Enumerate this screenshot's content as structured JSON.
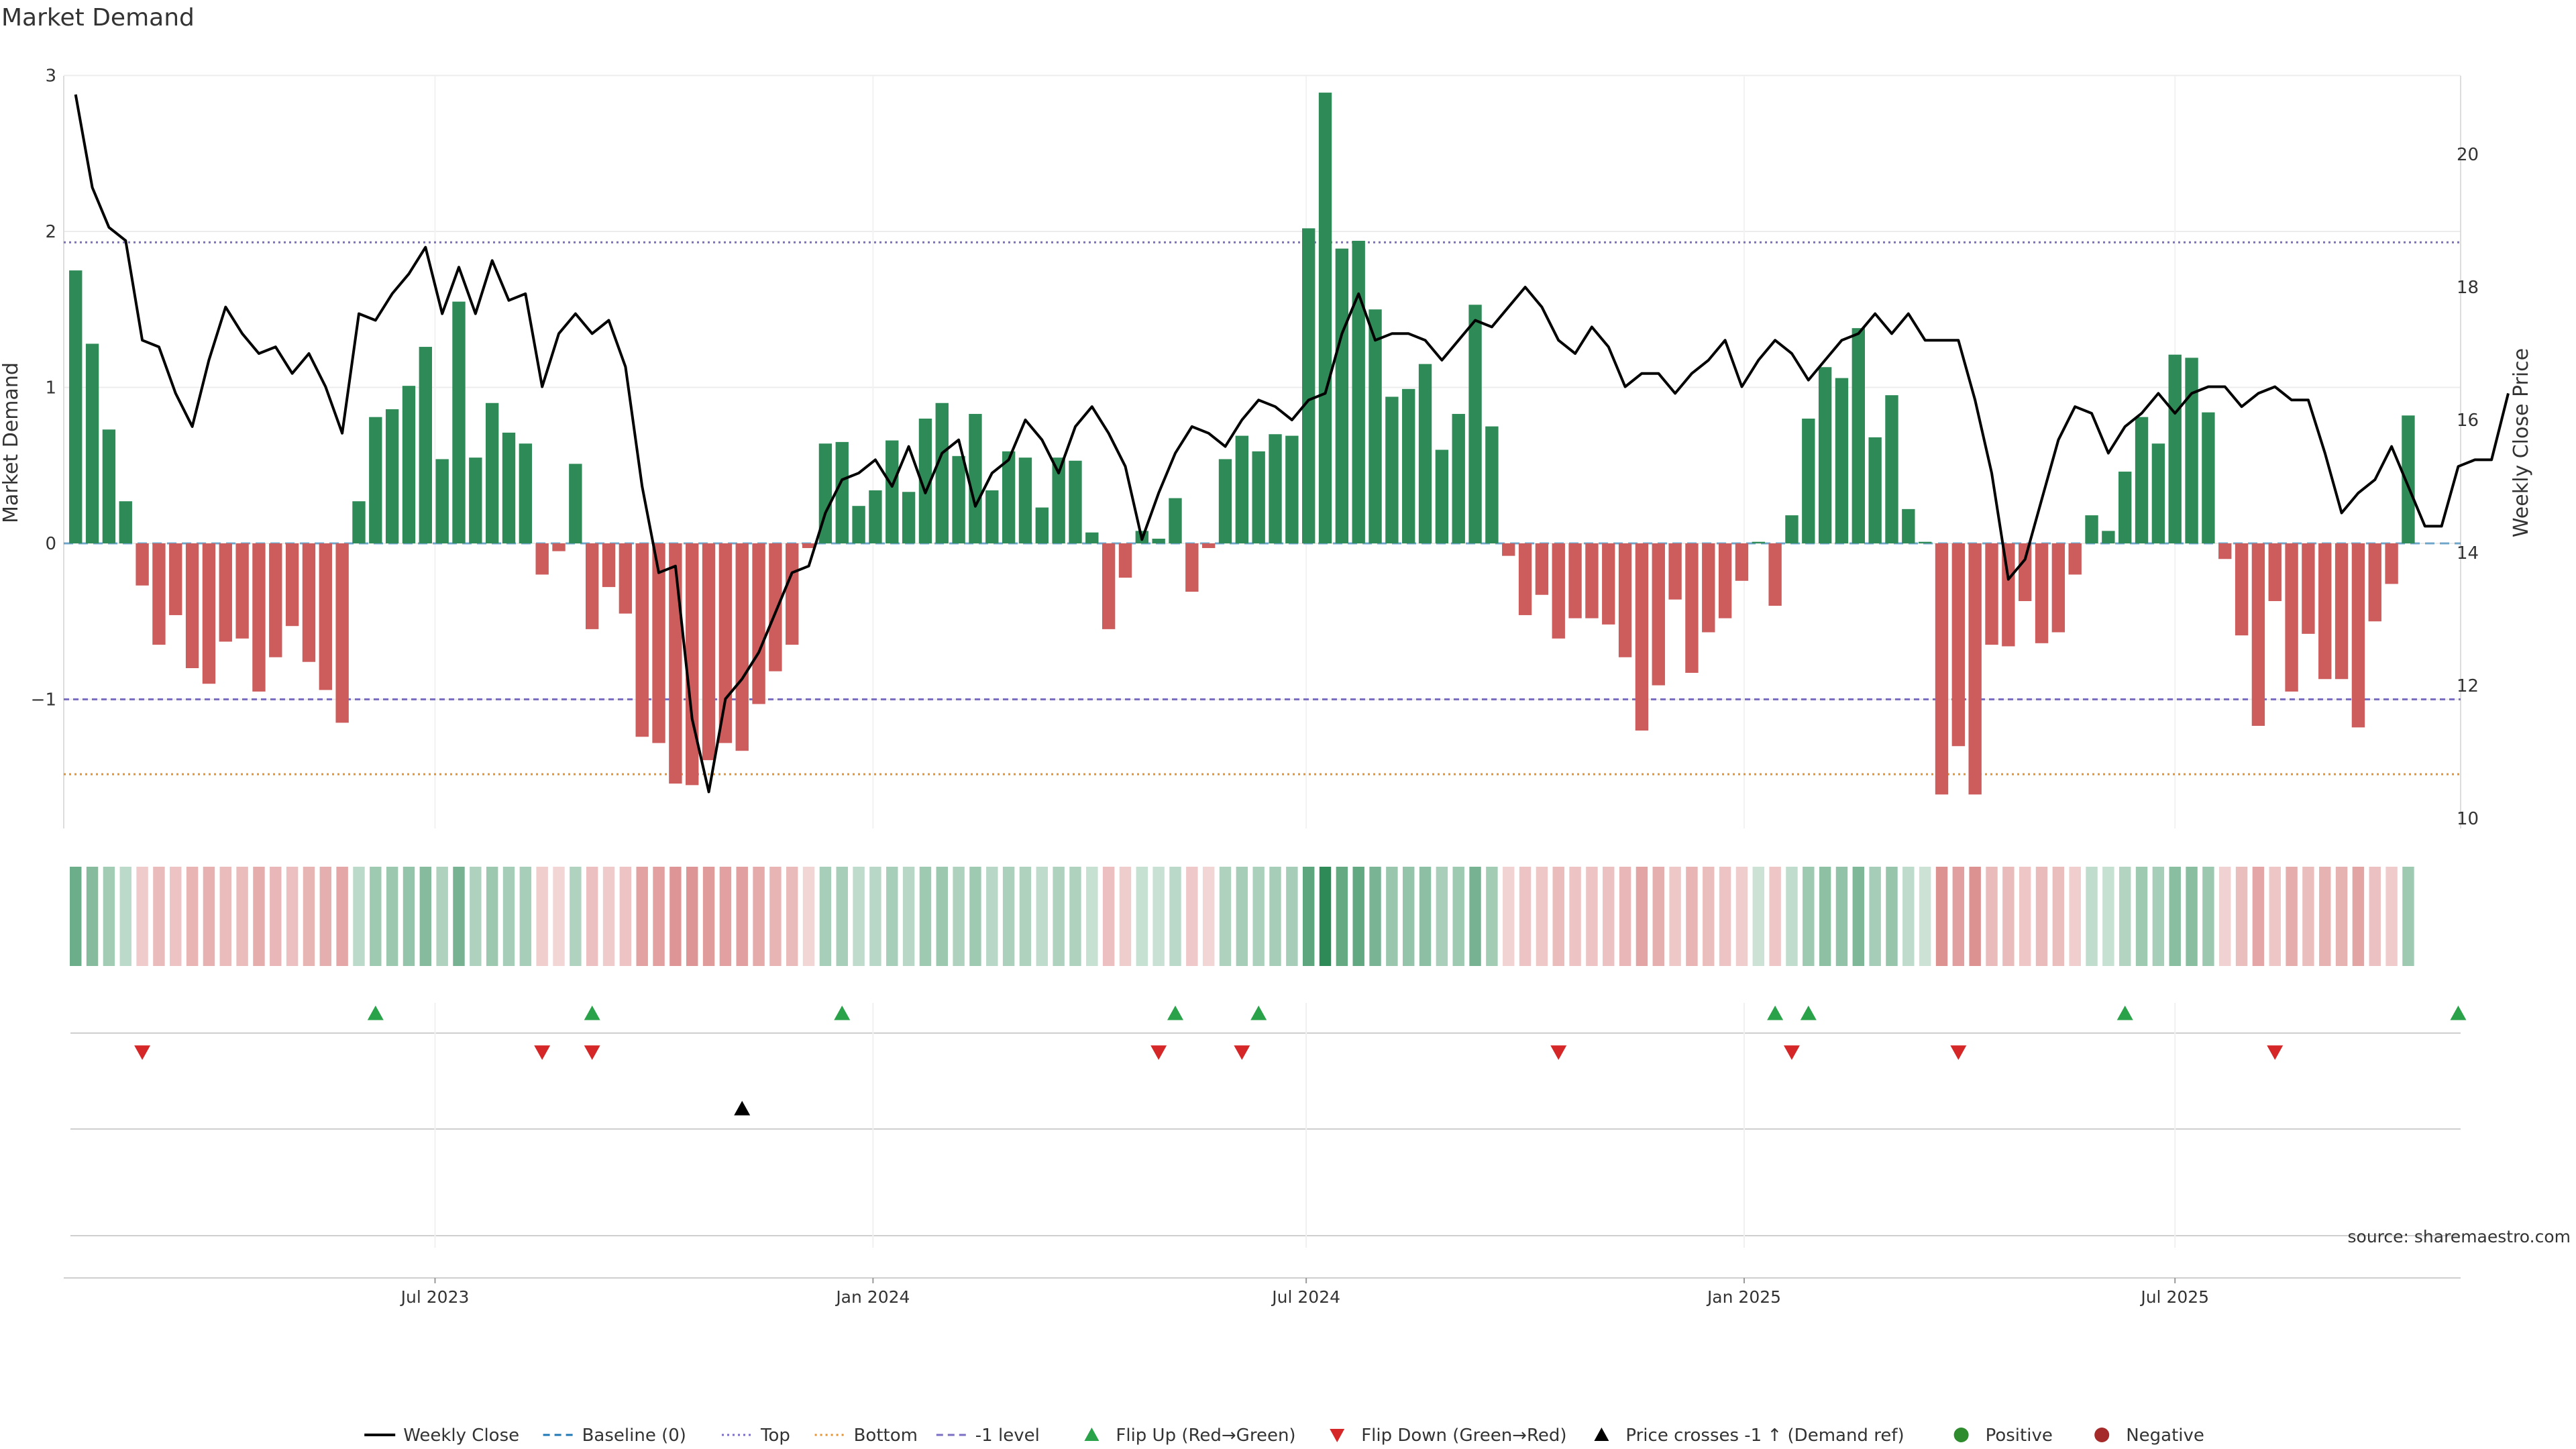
{
  "chart_data": {
    "type": "bar",
    "title": "Market Demand",
    "ylabel": "Market Demand",
    "y2label": "Weekly Close Price",
    "source": "source: sharemaestro.com",
    "ylim": [
      -1.85,
      3.0
    ],
    "y2lim": [
      9.8,
      21.5
    ],
    "y_ticks": [
      3,
      2,
      1,
      0,
      -1
    ],
    "y_tick_labels": [
      "3",
      "2",
      "1",
      "0",
      "−1"
    ],
    "y2_ticks": [
      20,
      18,
      16,
      14,
      12,
      10
    ],
    "x_ticks": [
      {
        "label": "Jul 2023",
        "date": "2023-07-01"
      },
      {
        "label": "Jan 2024",
        "date": "2024-01-01"
      },
      {
        "label": "Jul 2024",
        "date": "2024-07-01"
      },
      {
        "label": "Jan 2025",
        "date": "2025-01-01"
      },
      {
        "label": "Jul 2025",
        "date": "2025-07-01"
      }
    ],
    "x_range": [
      "2023-01-26",
      "2025-10-29"
    ],
    "reference_lines": [
      {
        "name": "Top",
        "value": 1.93,
        "color": "#7a6fc2",
        "style": "dotted"
      },
      {
        "name": "-1 level",
        "value": -1.0,
        "color": "#7a6fc2",
        "style": "dashed"
      },
      {
        "name": "Bottom",
        "value": -1.48,
        "color": "#e8922a",
        "style": "dotted"
      }
    ],
    "series": [
      {
        "name": "Market Demand",
        "type": "bar",
        "positive_color": "#2e8b57",
        "negative_color": "#cd5c5c",
        "x_start": "2023-01-31",
        "x_step_days": 7,
        "values": [
          1.75,
          1.28,
          0.73,
          0.27,
          -0.27,
          -0.65,
          -0.46,
          -0.8,
          -0.9,
          -0.63,
          -0.61,
          -0.95,
          -0.73,
          -0.53,
          -0.76,
          -0.94,
          -1.15,
          0.27,
          0.81,
          0.86,
          1.01,
          1.26,
          0.54,
          1.55,
          0.55,
          0.9,
          0.71,
          0.64,
          -0.2,
          -0.05,
          0.51,
          -0.55,
          -0.28,
          -0.45,
          -1.24,
          -1.28,
          -1.54,
          -1.55,
          -1.39,
          -1.28,
          -1.33,
          -1.03,
          -0.82,
          -0.65,
          -0.03,
          0.64,
          0.65,
          0.24,
          0.34,
          0.66,
          0.33,
          0.8,
          0.9,
          0.56,
          0.83,
          0.34,
          0.59,
          0.55,
          0.23,
          0.55,
          0.53,
          0.07,
          -0.55,
          -0.22,
          0.08,
          0.03,
          0.29,
          -0.31,
          -0.03,
          0.54,
          0.69,
          0.59,
          0.7,
          0.69,
          2.02,
          2.89,
          1.89,
          1.94,
          1.5,
          0.94,
          0.99,
          1.15,
          0.6,
          0.83,
          1.53,
          0.75,
          -0.08,
          -0.46,
          -0.33,
          -0.61,
          -0.48,
          -0.48,
          -0.52,
          -0.73,
          -1.2,
          -0.91,
          -0.36,
          -0.83,
          -0.57,
          -0.48,
          -0.24,
          0.01,
          -0.4,
          0.18,
          0.8,
          1.13,
          1.06,
          1.38,
          0.68,
          0.95,
          0.22,
          0.01,
          -1.61,
          -1.3,
          -1.61,
          -0.65,
          -0.66,
          -0.37,
          -0.64,
          -0.57,
          -0.2,
          0.18,
          0.08,
          0.46,
          0.81,
          0.64,
          1.21,
          1.19,
          0.84,
          -0.1,
          -0.59,
          -1.17,
          -0.37,
          -0.95,
          -0.58,
          -0.87,
          -0.87,
          -1.18,
          -0.5,
          -0.26,
          0.82
        ]
      },
      {
        "name": "Weekly Close",
        "type": "line",
        "color": "#000000",
        "axis": "right",
        "x_start": "2023-01-31",
        "x_step_days": 7,
        "values": [
          20.9,
          19.5,
          18.9,
          18.7,
          17.2,
          17.1,
          16.4,
          15.9,
          16.9,
          17.7,
          17.3,
          17.0,
          17.1,
          16.7,
          17.0,
          16.5,
          15.8,
          17.6,
          17.5,
          17.9,
          18.2,
          18.6,
          17.6,
          18.3,
          17.6,
          18.4,
          17.8,
          17.9,
          16.5,
          17.3,
          17.6,
          17.3,
          17.5,
          16.8,
          15.0,
          13.7,
          13.8,
          11.5,
          10.4,
          11.8,
          12.1,
          12.5,
          13.1,
          13.7,
          13.8,
          14.6,
          15.1,
          15.2,
          15.4,
          15.0,
          15.6,
          14.9,
          15.5,
          15.7,
          14.7,
          15.2,
          15.4,
          16.0,
          15.7,
          15.2,
          15.9,
          16.2,
          15.8,
          15.3,
          14.2,
          14.9,
          15.5,
          15.9,
          15.8,
          15.6,
          16.0,
          16.3,
          16.2,
          16.0,
          16.3,
          16.4,
          17.3,
          17.9,
          17.2,
          17.3,
          17.3,
          17.2,
          16.9,
          17.2,
          17.5,
          17.4,
          17.7,
          18.0,
          17.7,
          17.2,
          17.0,
          17.4,
          17.1,
          16.5,
          16.7,
          16.7,
          16.4,
          16.7,
          16.9,
          17.2,
          16.5,
          16.9,
          17.2,
          17.0,
          16.6,
          16.9,
          17.2,
          17.3,
          17.6,
          17.3,
          17.6,
          17.2,
          17.2,
          17.2,
          16.3,
          15.2,
          13.6,
          13.9,
          14.8,
          15.7,
          16.2,
          16.1,
          15.5,
          15.9,
          16.1,
          16.4,
          16.1,
          16.4,
          16.5,
          16.5,
          16.2,
          16.4,
          16.5,
          16.3,
          16.3,
          15.5,
          14.6,
          14.9,
          15.1,
          15.6,
          15.0,
          14.4,
          14.4,
          15.3,
          15.4,
          15.4,
          16.4
        ]
      }
    ],
    "signals": {
      "flip_up_dates": [
        "2023-06-06",
        "2023-09-05",
        "2023-12-19",
        "2024-05-07",
        "2024-06-11",
        "2025-01-14",
        "2025-01-28",
        "2025-06-10",
        "2025-10-28"
      ],
      "flip_down_dates": [
        "2023-02-28",
        "2023-08-15",
        "2023-09-05",
        "2024-04-30",
        "2024-06-04",
        "2024-10-15",
        "2025-01-21",
        "2025-04-01",
        "2025-08-12"
      ],
      "price_cross_dates": [
        "2023-11-07"
      ]
    },
    "legend": {
      "position": "bottom",
      "items": [
        {
          "label": "Weekly Close",
          "symbol": "line",
          "color": "#000000"
        },
        {
          "label": "Baseline (0)",
          "symbol": "dashed",
          "color": "#1f77b4"
        },
        {
          "label": "Top",
          "symbol": "dotted",
          "color": "#7a6fc2"
        },
        {
          "label": "Bottom",
          "symbol": "dotted",
          "color": "#e8922a"
        },
        {
          "label": "-1 level",
          "symbol": "dashed",
          "color": "#7a6fc2"
        },
        {
          "label": "Flip Up (Red→Green)",
          "symbol": "triangle-up",
          "color": "#2aa24a"
        },
        {
          "label": "Flip Down (Green→Red)",
          "symbol": "triangle-down",
          "color": "#d62728"
        },
        {
          "label": "Price crosses -1 ↑ (Demand ref)",
          "symbol": "triangle-up",
          "color": "#000000"
        },
        {
          "label": "Positive",
          "symbol": "circle",
          "color": "#2e8b2e"
        },
        {
          "label": "Negative",
          "symbol": "circle",
          "color": "#a52a2a"
        }
      ]
    }
  }
}
